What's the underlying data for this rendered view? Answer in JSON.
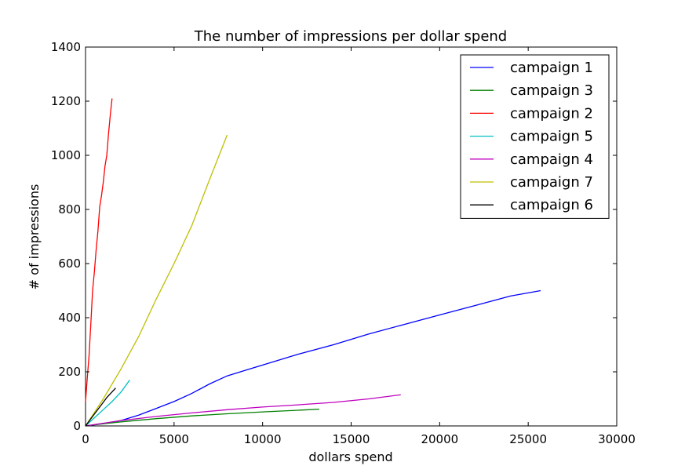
{
  "chart_data": {
    "type": "line",
    "title": "The number of impressions per dollar spend",
    "xlabel": "dollars spend",
    "ylabel": "# of impressions",
    "xlim": [
      0,
      30000
    ],
    "ylim": [
      0,
      1400
    ],
    "xticks": [
      0,
      5000,
      10000,
      15000,
      20000,
      25000,
      30000
    ],
    "yticks": [
      0,
      200,
      400,
      600,
      800,
      1000,
      1200,
      1400
    ],
    "grid": false,
    "legend_position": "top-right",
    "series": [
      {
        "name": "campaign 1",
        "color": "#0000ff",
        "x": [
          0,
          1000,
          2000,
          3000,
          4000,
          5000,
          6000,
          7000,
          8000,
          9000,
          10000,
          12000,
          14000,
          16000,
          18000,
          20000,
          22000,
          24000,
          25700
        ],
        "y": [
          0,
          8,
          20,
          40,
          65,
          90,
          120,
          155,
          185,
          205,
          225,
          265,
          300,
          340,
          375,
          410,
          445,
          480,
          500
        ]
      },
      {
        "name": "campaign 3",
        "color": "#008000",
        "x": [
          0,
          1000,
          2000,
          4000,
          6000,
          8000,
          10000,
          12000,
          13200
        ],
        "y": [
          0,
          8,
          15,
          27,
          37,
          45,
          52,
          58,
          62
        ]
      },
      {
        "name": "campaign 2",
        "color": "#ff0000",
        "x": [
          0,
          100,
          200,
          300,
          400,
          500,
          600,
          700,
          800,
          900,
          1000,
          1100,
          1200,
          1300,
          1400,
          1500
        ],
        "y": [
          90,
          180,
          260,
          380,
          500,
          570,
          650,
          720,
          810,
          850,
          900,
          960,
          1000,
          1080,
          1150,
          1210
        ]
      },
      {
        "name": "campaign 5",
        "color": "#00bfbf",
        "x": [
          0,
          500,
          1000,
          1500,
          2000,
          2500
        ],
        "y": [
          0,
          30,
          60,
          90,
          125,
          170
        ]
      },
      {
        "name": "campaign 4",
        "color": "#bf00bf",
        "x": [
          0,
          2000,
          4000,
          6000,
          8000,
          10000,
          12000,
          14000,
          16000,
          17800
        ],
        "y": [
          0,
          20,
          35,
          48,
          60,
          70,
          78,
          87,
          100,
          115
        ]
      },
      {
        "name": "campaign 7",
        "color": "#bfbf00",
        "x": [
          0,
          500,
          1000,
          2000,
          3000,
          4000,
          5000,
          6000,
          7000,
          8000
        ],
        "y": [
          0,
          50,
          100,
          210,
          330,
          470,
          600,
          740,
          910,
          1075
        ]
      },
      {
        "name": "campaign 6",
        "color": "#000000",
        "x": [
          0,
          400,
          800,
          1200,
          1700
        ],
        "y": [
          0,
          35,
          70,
          105,
          140
        ]
      }
    ]
  }
}
